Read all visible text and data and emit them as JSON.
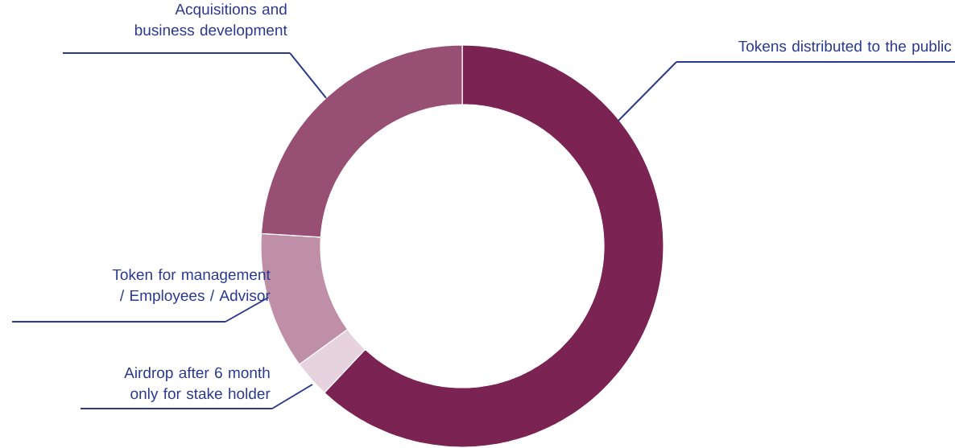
{
  "chart_data": {
    "type": "donut",
    "categories": [
      "Tokens distributed to the public",
      "Airdrop after 6 month only for stake holder",
      "Token for management / Employees / Advisor",
      "Acquisitions and business development"
    ],
    "values": [
      62,
      3,
      11,
      24
    ],
    "colors": [
      "#7b2352",
      "#e6d3dd",
      "#bf8fa8",
      "#975073"
    ]
  }
}
